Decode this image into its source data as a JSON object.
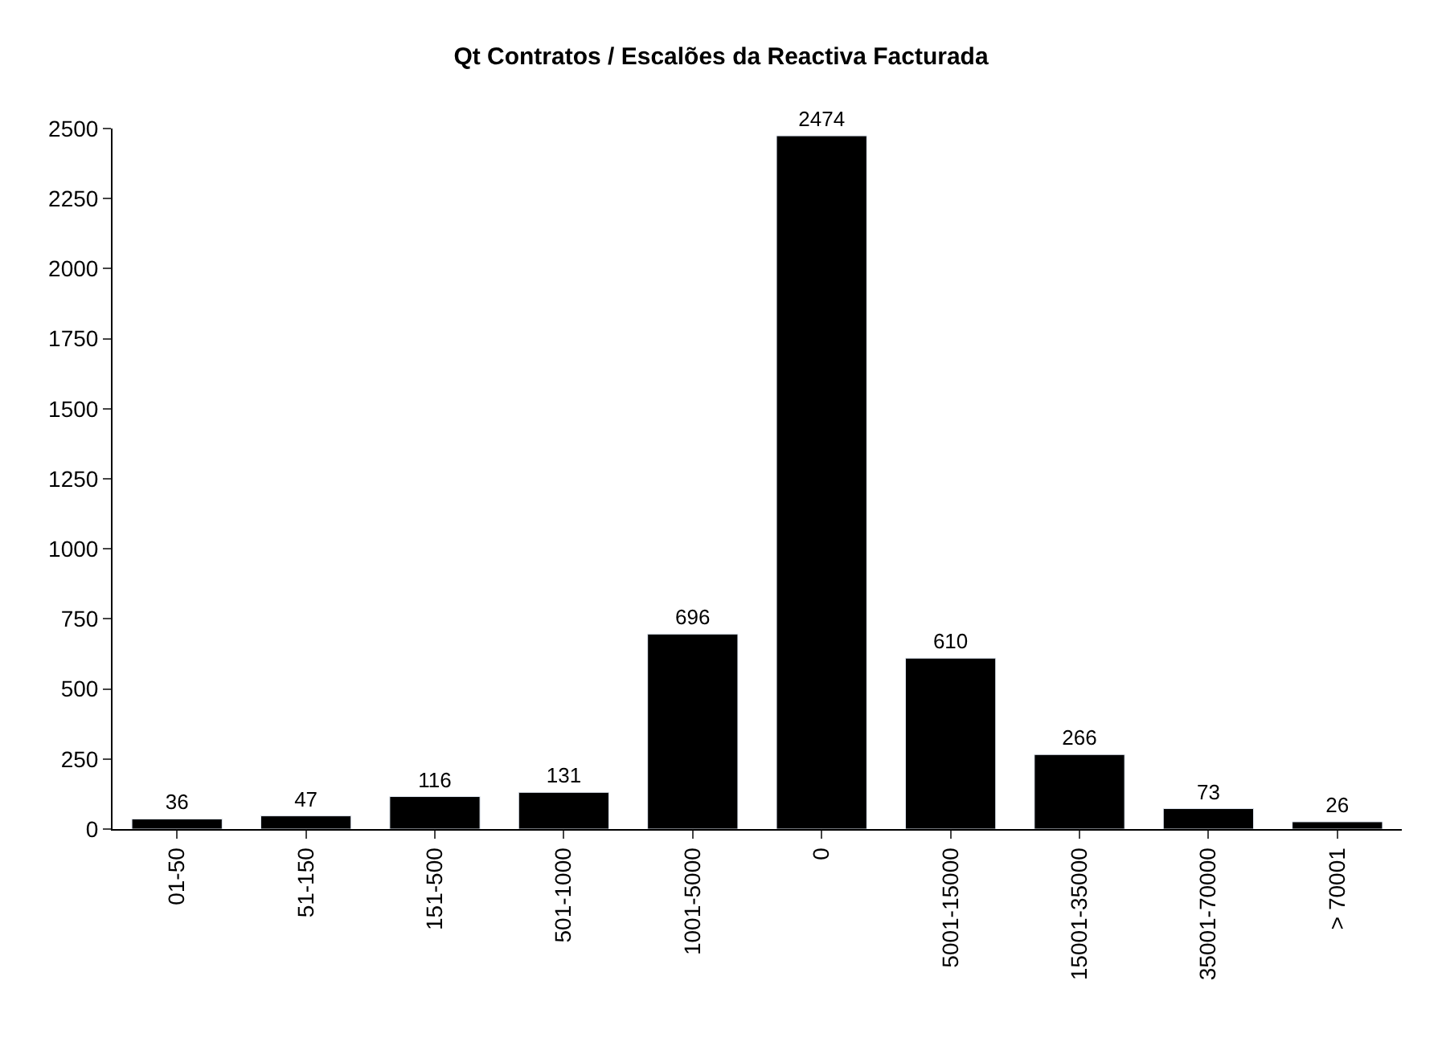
{
  "chart_data": {
    "type": "bar",
    "title": "Qt Contratos / Escalões da Reactiva Facturada",
    "categories": [
      "01-50",
      "51-150",
      "151-500",
      "501-1000",
      "1001-5000",
      "0",
      "5001-15000",
      "15001-35000",
      "35001-70000",
      "> 70001"
    ],
    "values": [
      36,
      47,
      116,
      131,
      696,
      2474,
      610,
      266,
      73,
      26
    ],
    "color": "#000000",
    "ylim": [
      0,
      2500
    ],
    "yticks": [
      0,
      250,
      500,
      750,
      1000,
      1250,
      1500,
      1750,
      2000,
      2250,
      2500
    ],
    "data_labels": true
  }
}
